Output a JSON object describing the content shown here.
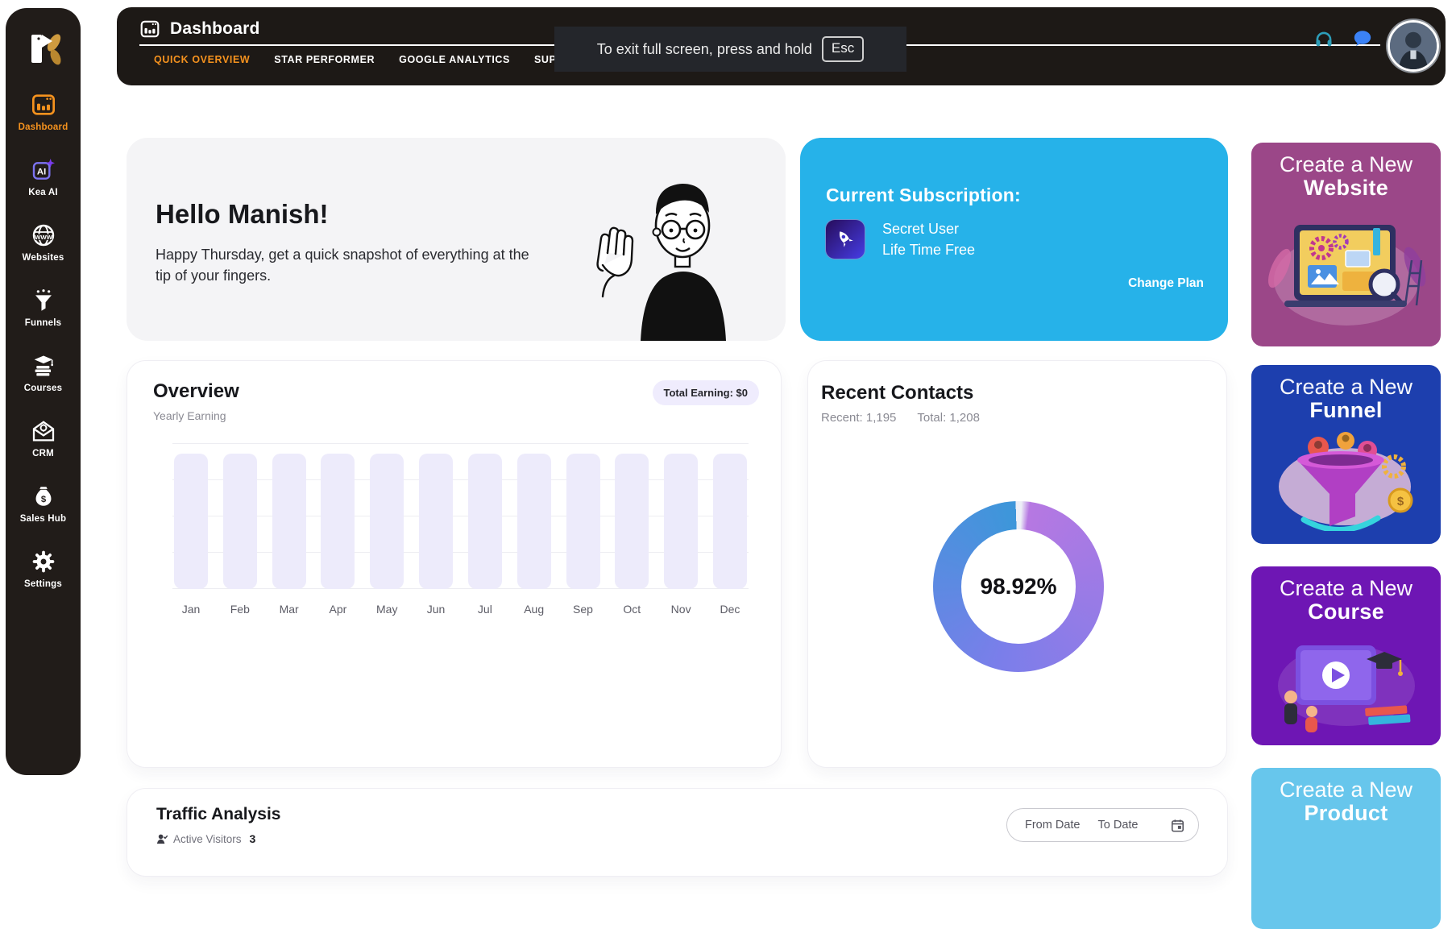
{
  "sidebar": {
    "items": [
      {
        "label": "Dashboard",
        "icon": "dashboard-icon",
        "active": true
      },
      {
        "label": "Kea AI",
        "icon": "kea-ai-icon",
        "active": false
      },
      {
        "label": "Websites",
        "icon": "globe-www-icon",
        "active": false
      },
      {
        "label": "Funnels",
        "icon": "funnel-icon",
        "active": false
      },
      {
        "label": "Courses",
        "icon": "courses-icon",
        "active": false
      },
      {
        "label": "CRM",
        "icon": "crm-envelope-icon",
        "active": false
      },
      {
        "label": "Sales Hub",
        "icon": "money-bag-icon",
        "active": false
      },
      {
        "label": "Settings",
        "icon": "gear-icon",
        "active": false
      }
    ],
    "accent_color": "#f5921e"
  },
  "header": {
    "title": "Dashboard",
    "tabs": [
      {
        "label": "QUICK OVERVIEW",
        "active": true
      },
      {
        "label": "STAR PERFORMER",
        "active": false
      },
      {
        "label": "GOOGLE ANALYTICS",
        "active": false
      },
      {
        "label": "SUP",
        "active": false
      }
    ]
  },
  "fullscreen_notice": {
    "text": "To exit full screen, press and hold",
    "key": "Esc"
  },
  "greeting": {
    "title": "Hello Manish!",
    "subtitle": "Happy Thursday, get a quick snapshot of everything at the tip of your fingers."
  },
  "subscription": {
    "title": "Current Subscription:",
    "user": "Secret User",
    "plan": "Life Time Free",
    "action": "Change Plan",
    "bg": "#26b2e9"
  },
  "overview": {
    "title": "Overview",
    "subtitle": "Yearly Earning",
    "badge": "Total Earning: $0"
  },
  "contacts": {
    "title": "Recent Contacts",
    "recent_label": "Recent: 1,195",
    "total_label": "Total: 1,208",
    "percentage": "98.92%"
  },
  "promo_cards": [
    {
      "line1": "Create a New",
      "line2": "Website",
      "bg": "#9b4788"
    },
    {
      "line1": "Create a New",
      "line2": "Funnel",
      "bg": "#1d3fae"
    },
    {
      "line1": "Create a New",
      "line2": "Course",
      "bg": "#6e16b4"
    },
    {
      "line1": "Create a New",
      "line2": "Product",
      "bg": "#67c6ec"
    }
  ],
  "traffic": {
    "title": "Traffic Analysis",
    "visitors_label": "Active Visitors",
    "visitors_count": "3",
    "from_date_placeholder": "From Date",
    "to_date_placeholder": "To Date"
  },
  "chart_data": [
    {
      "type": "bar",
      "title": "Overview",
      "subtitle": "Yearly Earning",
      "categories": [
        "Jan",
        "Feb",
        "Mar",
        "Apr",
        "May",
        "Jun",
        "Jul",
        "Aug",
        "Sep",
        "Oct",
        "Nov",
        "Dec"
      ],
      "values": [
        0,
        0,
        0,
        0,
        0,
        0,
        0,
        0,
        0,
        0,
        0,
        0
      ],
      "total_earning": "$0",
      "bar_color": "#edebfb",
      "grid": true
    },
    {
      "type": "donut",
      "title": "Recent Contacts",
      "value": 98.92,
      "label": "98.92%",
      "segments": [
        {
          "name": "filled",
          "value": 98.92
        },
        {
          "name": "remainder",
          "value": 1.08
        }
      ],
      "colors": {
        "start": "#b678e2",
        "mid": "#7b7eea",
        "end": "#3e96da",
        "track": "#edeff7"
      }
    }
  ]
}
